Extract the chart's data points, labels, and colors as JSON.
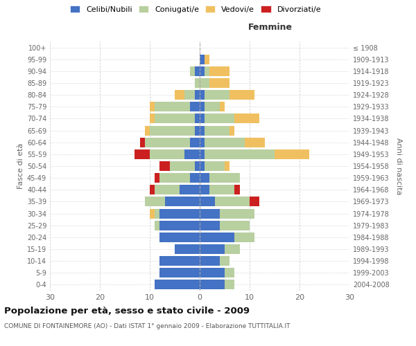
{
  "age_groups": [
    "0-4",
    "5-9",
    "10-14",
    "15-19",
    "20-24",
    "25-29",
    "30-34",
    "35-39",
    "40-44",
    "45-49",
    "50-54",
    "55-59",
    "60-64",
    "65-69",
    "70-74",
    "75-79",
    "80-84",
    "85-89",
    "90-94",
    "95-99",
    "100+"
  ],
  "birth_years": [
    "2004-2008",
    "1999-2003",
    "1994-1998",
    "1989-1993",
    "1984-1988",
    "1979-1983",
    "1974-1978",
    "1969-1973",
    "1964-1968",
    "1959-1963",
    "1954-1958",
    "1949-1953",
    "1944-1948",
    "1939-1943",
    "1934-1938",
    "1929-1933",
    "1924-1928",
    "1919-1923",
    "1914-1918",
    "1909-1913",
    "≤ 1908"
  ],
  "colors": {
    "celibe": "#4472c4",
    "coniugato": "#b8cfa0",
    "vedovo": "#f0c060",
    "divorziato": "#cc2020"
  },
  "males": {
    "celibe": [
      9,
      8,
      8,
      5,
      8,
      8,
      8,
      7,
      4,
      2,
      1,
      3,
      2,
      1,
      1,
      2,
      1,
      0,
      1,
      0,
      0
    ],
    "coniugato": [
      0,
      0,
      0,
      0,
      0,
      1,
      1,
      4,
      5,
      6,
      5,
      7,
      9,
      9,
      8,
      7,
      2,
      1,
      1,
      0,
      0
    ],
    "vedovo": [
      0,
      0,
      0,
      0,
      0,
      0,
      1,
      0,
      0,
      0,
      0,
      0,
      0,
      1,
      1,
      1,
      2,
      0,
      0,
      0,
      0
    ],
    "divorziato": [
      0,
      0,
      0,
      0,
      0,
      0,
      0,
      0,
      1,
      1,
      2,
      3,
      1,
      0,
      0,
      0,
      0,
      0,
      0,
      0,
      0
    ]
  },
  "females": {
    "nubile": [
      5,
      5,
      4,
      5,
      7,
      4,
      4,
      3,
      2,
      2,
      1,
      1,
      1,
      1,
      1,
      1,
      1,
      0,
      1,
      1,
      0
    ],
    "coniugata": [
      2,
      2,
      2,
      3,
      4,
      6,
      7,
      7,
      5,
      6,
      4,
      14,
      8,
      5,
      6,
      3,
      5,
      2,
      1,
      0,
      0
    ],
    "vedova": [
      0,
      0,
      0,
      0,
      0,
      0,
      0,
      0,
      0,
      0,
      1,
      7,
      4,
      1,
      5,
      1,
      5,
      4,
      4,
      1,
      0
    ],
    "divorziata": [
      0,
      0,
      0,
      0,
      0,
      0,
      0,
      2,
      1,
      0,
      0,
      0,
      0,
      0,
      0,
      0,
      0,
      0,
      0,
      0,
      0
    ]
  },
  "xlim": 30,
  "title": "Popolazione per età, sesso e stato civile - 2009",
  "subtitle": "COMUNE DI FONTAINEMORE (AO) - Dati ISTAT 1° gennaio 2009 - Elaborazione TUTTITALIA.IT",
  "ylabel_left": "Fasce di età",
  "ylabel_right": "Anni di nascita",
  "xlabel_femmine": "Femmine",
  "legend_labels": [
    "Celibi/Nubili",
    "Coniugati/e",
    "Vedovi/e",
    "Divorziati/e"
  ],
  "bg_color": "#ffffff",
  "grid_color": "#cccccc"
}
